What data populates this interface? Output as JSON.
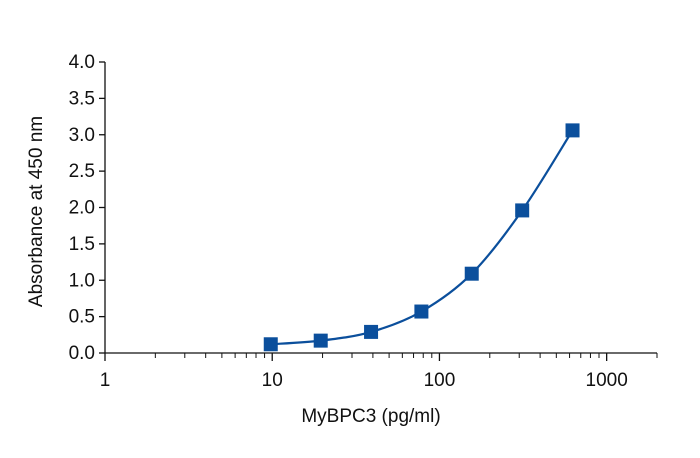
{
  "chart_data": {
    "type": "scatter",
    "title": "",
    "xlabel": "MyBPC3 (pg/ml)",
    "ylabel": "Absorbance at 450 nm",
    "x_scale": "log",
    "xlim": [
      1,
      2000
    ],
    "ylim": [
      0,
      4.0
    ],
    "x_ticks": [
      1,
      10,
      100,
      1000
    ],
    "x_tick_labels": [
      "1",
      "10",
      "100",
      "1000"
    ],
    "y_ticks": [
      0,
      0.5,
      1.0,
      1.5,
      2.0,
      2.5,
      3.0,
      3.5,
      4.0
    ],
    "y_tick_labels": [
      "0.0",
      "0.5",
      "1.0",
      "1.5",
      "2.0",
      "2.5",
      "3.0",
      "3.5",
      "4.0"
    ],
    "grid": false,
    "legend": "none",
    "series": [
      {
        "x": [
          9.8,
          19.5,
          39,
          78,
          156,
          312.5,
          625
        ],
        "y": [
          0.12,
          0.17,
          0.29,
          0.57,
          1.09,
          1.96,
          3.06
        ],
        "color": "#0b4f9c",
        "marker": "square",
        "fit_line": true
      }
    ]
  }
}
